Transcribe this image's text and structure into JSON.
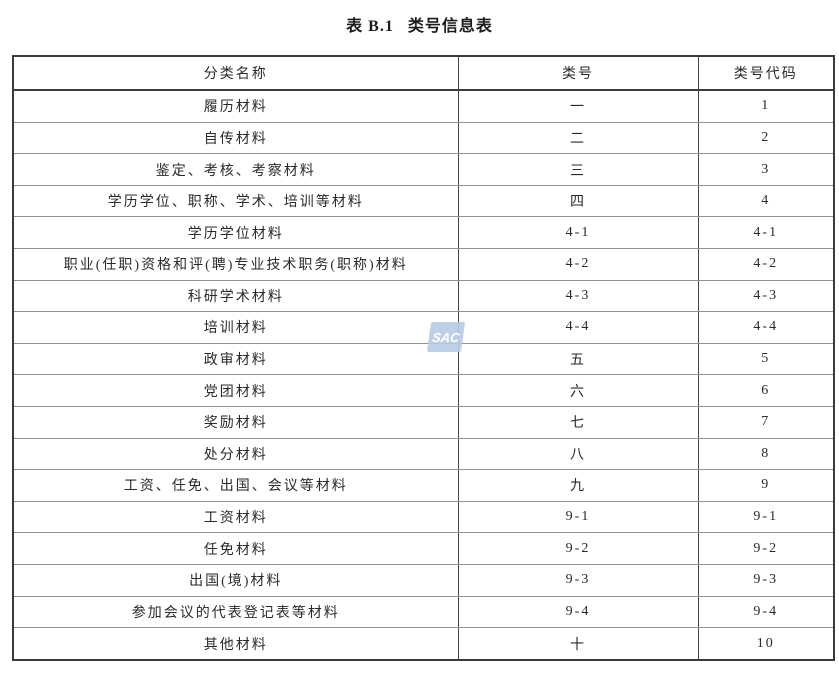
{
  "title": {
    "prefix": "表 B.1",
    "text": "类号信息表"
  },
  "watermark": {
    "text": "SAC",
    "bg_color": "#b7cbe6",
    "text_color": "#ffffff"
  },
  "table": {
    "headers": [
      "分类名称",
      "类号",
      "类号代码"
    ],
    "rows": [
      [
        "履历材料",
        "一",
        "1"
      ],
      [
        "自传材料",
        "二",
        "2"
      ],
      [
        "鉴定、考核、考察材料",
        "三",
        "3"
      ],
      [
        "学历学位、职称、学术、培训等材料",
        "四",
        "4"
      ],
      [
        "学历学位材料",
        "4-1",
        "4-1"
      ],
      [
        "职业(任职)资格和评(聘)专业技术职务(职称)材料",
        "4-2",
        "4-2"
      ],
      [
        "科研学术材料",
        "4-3",
        "4-3"
      ],
      [
        "培训材料",
        "4-4",
        "4-4"
      ],
      [
        "政审材料",
        "五",
        "5"
      ],
      [
        "党团材料",
        "六",
        "6"
      ],
      [
        "奖励材料",
        "七",
        "7"
      ],
      [
        "处分材料",
        "八",
        "8"
      ],
      [
        "工资、任免、出国、会议等材料",
        "九",
        "9"
      ],
      [
        "工资材料",
        "9-1",
        "9-1"
      ],
      [
        "任免材料",
        "9-2",
        "9-2"
      ],
      [
        "出国(境)材料",
        "9-3",
        "9-3"
      ],
      [
        "参加会议的代表登记表等材料",
        "9-4",
        "9-4"
      ],
      [
        "其他材料",
        "十",
        "10"
      ]
    ]
  }
}
